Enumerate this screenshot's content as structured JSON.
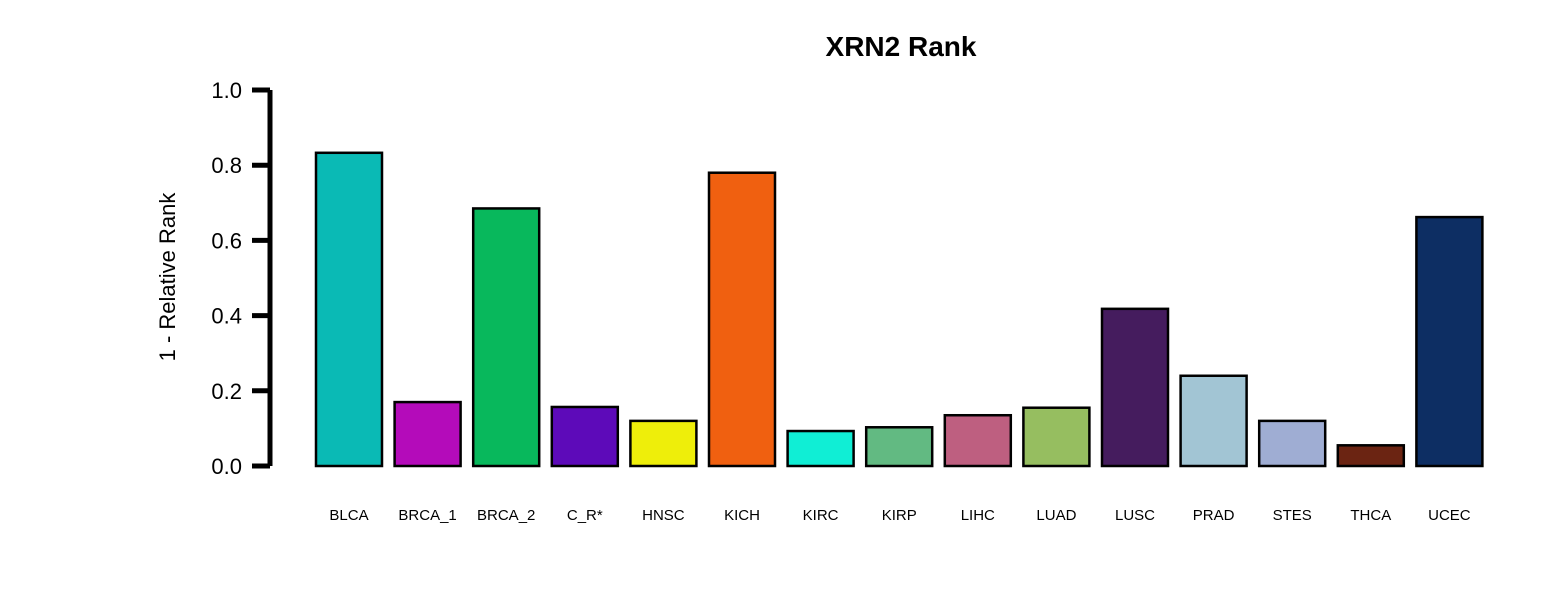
{
  "chart_data": {
    "type": "bar",
    "title": "XRN2 Rank",
    "xlabel": "",
    "ylabel": "1 - Relative Rank",
    "ylim": [
      0,
      1.0
    ],
    "yticks": [
      "0.0",
      "0.2",
      "0.4",
      "0.6",
      "0.8",
      "1.0"
    ],
    "grid": false,
    "categories": [
      "BLCA",
      "BRCA_1",
      "BRCA_2",
      "C_R*",
      "HNSC",
      "KICH",
      "KIRC",
      "KIRP",
      "LIHC",
      "LUAD",
      "LUSC",
      "PRAD",
      "STES",
      "THCA",
      "UCEC"
    ],
    "values": [
      0.833,
      0.17,
      0.685,
      0.157,
      0.12,
      0.78,
      0.093,
      0.103,
      0.135,
      0.155,
      0.418,
      0.24,
      0.12,
      0.055,
      0.662
    ],
    "colors": [
      "#0ABAB5",
      "#B40BBA",
      "#08B85C",
      "#5D0AB9",
      "#EEEE0A",
      "#F06010",
      "#10EED5",
      "#62BA82",
      "#BE5F80",
      "#96BE60",
      "#451C5E",
      "#A2C5D4",
      "#9FADD3",
      "#6B2412",
      "#0D2E63"
    ]
  }
}
